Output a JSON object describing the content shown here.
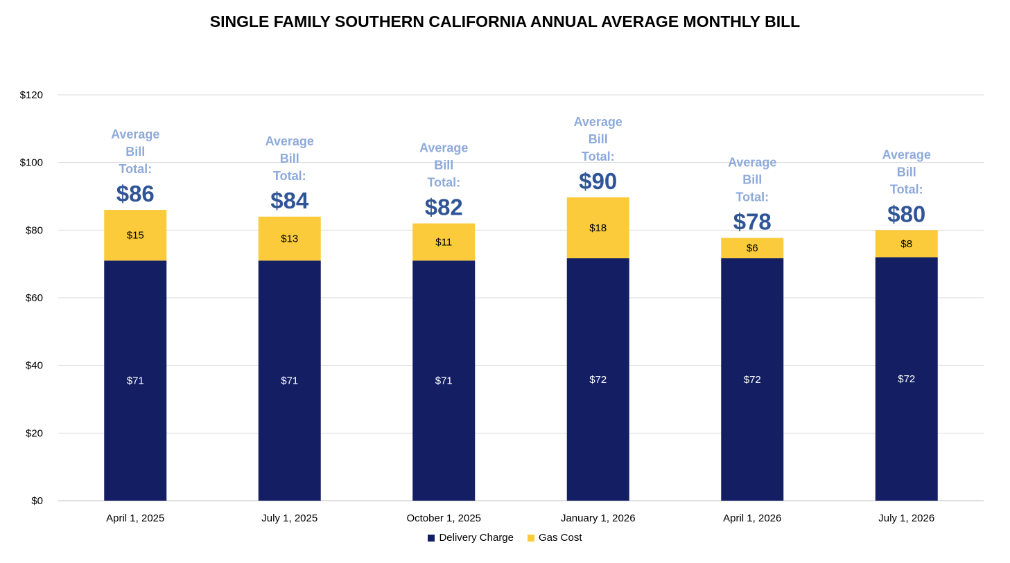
{
  "chart_data": {
    "type": "bar",
    "stacked": true,
    "title": "SINGLE FAMILY SOUTHERN CALIFORNIA ANNUAL AVERAGE MONTHLY BILL",
    "categories": [
      "April 1, 2025",
      "July 1, 2025",
      "October 1, 2025",
      "January 1, 2026",
      "April 1, 2026",
      "July 1, 2026"
    ],
    "series": [
      {
        "name": "Delivery Charge",
        "color": "#141f63",
        "label_color": "#ffffff",
        "values": [
          71,
          71,
          71,
          71.7,
          71.7,
          72
        ],
        "labels": [
          "$71",
          "$71",
          "$71",
          "$72",
          "$72",
          "$72"
        ]
      },
      {
        "name": "Gas Cost",
        "color": "#fccb3c",
        "label_color": "#000000",
        "values": [
          15,
          13,
          11,
          18,
          6,
          8
        ],
        "labels": [
          "$15",
          "$13",
          "$11",
          "$18",
          "$6",
          "$8"
        ]
      }
    ],
    "total_caption_lines": [
      "Average",
      "Bill",
      "Total:"
    ],
    "total_caption_color": "#8eaadb",
    "total_value_color": "#2f5597",
    "totals": [
      "$86",
      "$84",
      "$82",
      "$90",
      "$78",
      "$80"
    ],
    "ylim": [
      0,
      120
    ],
    "yticks": [
      0,
      20,
      40,
      60,
      80,
      100,
      120
    ],
    "ytick_labels": [
      "$0",
      "$20",
      "$40",
      "$60",
      "$80",
      "$100",
      "$120"
    ],
    "grid": true,
    "grid_color": "#d9d9d9",
    "legend_position": "bottom"
  }
}
